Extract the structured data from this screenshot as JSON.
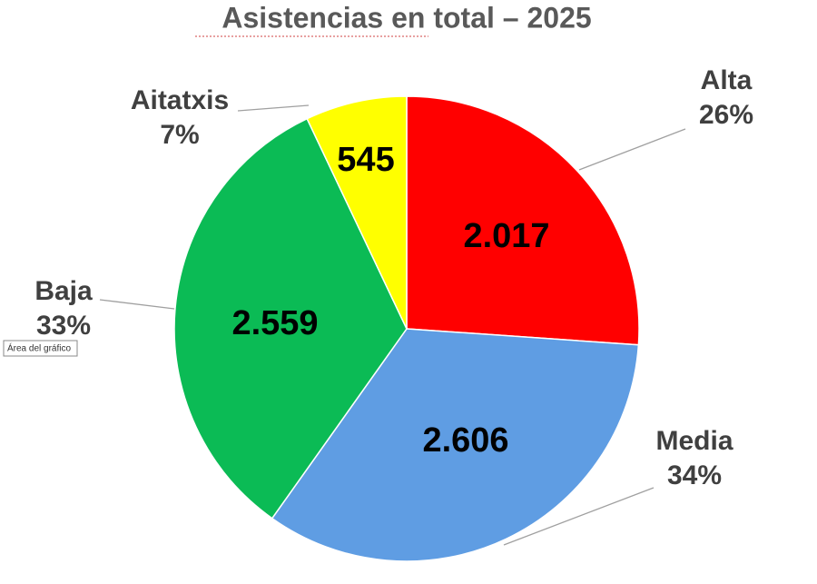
{
  "chart_data": {
    "type": "pie",
    "title": "Asistencias en total – 2025",
    "categories": [
      "Alta",
      "Media",
      "Baja",
      "Aitatxis"
    ],
    "values": [
      2017,
      2606,
      2559,
      545
    ],
    "value_labels": [
      "2.017",
      "2.606",
      "2.559",
      "545"
    ],
    "percentages": [
      26,
      34,
      33,
      7
    ],
    "percentage_labels": [
      "26%",
      "34%",
      "33%",
      "7%"
    ],
    "colors": [
      "#ff0000",
      "#5f9de3",
      "#0bbb55",
      "#ffff00"
    ],
    "tooltip": "Área del gráfico"
  }
}
